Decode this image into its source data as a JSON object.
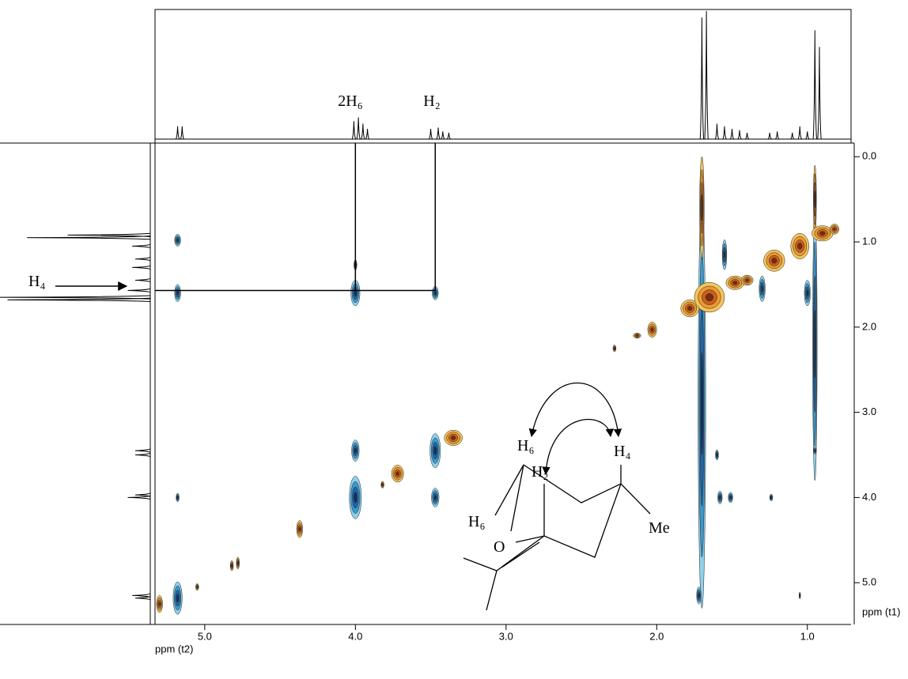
{
  "chart_data": {
    "type": "nmr2d",
    "x_label": "ppm (t2)",
    "y_label": "ppm (t1)",
    "xlim": [
      5.33,
      0.71
    ],
    "ylim": [
      -0.16,
      5.49
    ],
    "xticks": [
      {
        "value": 5,
        "label": "5.0"
      },
      {
        "value": 4,
        "label": "4.0"
      },
      {
        "value": 3,
        "label": "3.0"
      },
      {
        "value": 2,
        "label": "2.0"
      },
      {
        "value": 1,
        "label": "1.0"
      }
    ],
    "yticks": [
      {
        "value": 0,
        "label": "0.0"
      },
      {
        "value": 1,
        "label": "1.0"
      },
      {
        "value": 2,
        "label": "2.0"
      },
      {
        "value": 3,
        "label": "3.0"
      },
      {
        "value": 4,
        "label": "4.0"
      },
      {
        "value": 5,
        "label": "5.0"
      }
    ],
    "positive_colors": [
      "#f5c45a",
      "#ec9a32",
      "#c8601e",
      "#7a2a10"
    ],
    "negative_colors": [
      "#8fd0ea",
      "#3a9ad0",
      "#2364a8",
      "#12305e"
    ],
    "annotations": [
      "2H₆",
      "H₂",
      "H₄"
    ],
    "guides": [
      {
        "x": 4.0,
        "y": 1.57
      },
      {
        "x": 3.47,
        "y": 1.57
      }
    ],
    "top_trace": [
      {
        "x": 5.18,
        "height": 10
      },
      {
        "x": 5.15,
        "height": 10
      },
      {
        "x": 4.01,
        "height": 14
      },
      {
        "x": 3.98,
        "height": 17
      },
      {
        "x": 3.95,
        "height": 12
      },
      {
        "x": 3.92,
        "height": 8
      },
      {
        "x": 3.5,
        "height": 8
      },
      {
        "x": 3.45,
        "height": 9
      },
      {
        "x": 3.42,
        "height": 6
      },
      {
        "x": 3.38,
        "height": 5
      },
      {
        "x": 1.7,
        "height": 95
      },
      {
        "x": 1.67,
        "height": 100
      },
      {
        "x": 1.6,
        "height": 12
      },
      {
        "x": 1.55,
        "height": 10
      },
      {
        "x": 1.5,
        "height": 8
      },
      {
        "x": 1.45,
        "height": 7
      },
      {
        "x": 1.4,
        "height": 5
      },
      {
        "x": 1.25,
        "height": 5
      },
      {
        "x": 1.2,
        "height": 6
      },
      {
        "x": 1.1,
        "height": 5
      },
      {
        "x": 1.05,
        "height": 10
      },
      {
        "x": 1.0,
        "height": 6
      },
      {
        "x": 0.95,
        "height": 85
      },
      {
        "x": 0.92,
        "height": 72
      }
    ],
    "left_trace": [
      {
        "y": 0.95,
        "height": 82
      },
      {
        "y": 0.92,
        "height": 55
      },
      {
        "y": 1.05,
        "height": 12
      },
      {
        "y": 1.2,
        "height": 10
      },
      {
        "y": 1.3,
        "height": 12
      },
      {
        "y": 1.45,
        "height": 10
      },
      {
        "y": 1.57,
        "height": 15
      },
      {
        "y": 1.65,
        "height": 100
      },
      {
        "y": 1.68,
        "height": 95
      },
      {
        "y": 3.45,
        "height": 10
      },
      {
        "y": 3.5,
        "height": 10
      },
      {
        "y": 3.97,
        "height": 10
      },
      {
        "y": 4.0,
        "height": 15
      },
      {
        "y": 5.15,
        "height": 12
      },
      {
        "y": 5.18,
        "height": 10
      }
    ],
    "peaks": [
      {
        "x": 1.7,
        "y": 2.9,
        "w": 0.05,
        "h": 4.8,
        "sign": -1
      },
      {
        "x": 0.95,
        "y": 2.2,
        "w": 0.03,
        "h": 3.2,
        "sign": -1
      },
      {
        "x": 5.18,
        "y": 0.98,
        "w": 0.04,
        "h": 0.14,
        "sign": -1
      },
      {
        "x": 5.18,
        "y": 1.6,
        "w": 0.04,
        "h": 0.2,
        "sign": -1
      },
      {
        "x": 5.18,
        "y": 4.0,
        "w": 0.02,
        "h": 0.1,
        "sign": -1
      },
      {
        "x": 5.18,
        "y": 5.18,
        "w": 0.06,
        "h": 0.38,
        "sign": -1
      },
      {
        "x": 4.0,
        "y": 1.27,
        "w": 0.02,
        "h": 0.12,
        "sign": -1
      },
      {
        "x": 4.0,
        "y": 1.6,
        "w": 0.06,
        "h": 0.3,
        "sign": -1
      },
      {
        "x": 4.0,
        "y": 3.45,
        "w": 0.05,
        "h": 0.25,
        "sign": -1
      },
      {
        "x": 4.0,
        "y": 4.0,
        "w": 0.08,
        "h": 0.5,
        "sign": -1
      },
      {
        "x": 3.47,
        "y": 1.6,
        "w": 0.04,
        "h": 0.16,
        "sign": -1
      },
      {
        "x": 3.47,
        "y": 3.45,
        "w": 0.07,
        "h": 0.4,
        "sign": -1
      },
      {
        "x": 3.47,
        "y": 4.0,
        "w": 0.05,
        "h": 0.22,
        "sign": -1
      },
      {
        "x": 1.72,
        "y": 5.15,
        "w": 0.03,
        "h": 0.2,
        "sign": -1
      },
      {
        "x": 1.6,
        "y": 3.5,
        "w": 0.02,
        "h": 0.12,
        "sign": -1
      },
      {
        "x": 1.58,
        "y": 4.0,
        "w": 0.03,
        "h": 0.15,
        "sign": -1
      },
      {
        "x": 1.55,
        "y": 1.15,
        "w": 0.03,
        "h": 0.35,
        "sign": -1
      },
      {
        "x": 1.51,
        "y": 4.0,
        "w": 0.03,
        "h": 0.12,
        "sign": -1
      },
      {
        "x": 1.24,
        "y": 4.0,
        "w": 0.02,
        "h": 0.08,
        "sign": -1
      },
      {
        "x": 1.3,
        "y": 1.55,
        "w": 0.04,
        "h": 0.3,
        "sign": -1
      },
      {
        "x": 1.0,
        "y": 1.6,
        "w": 0.04,
        "h": 0.3,
        "sign": -1
      },
      {
        "x": 0.95,
        "y": 3.45,
        "w": 0.02,
        "h": 0.08,
        "sign": -1
      },
      {
        "x": 1.05,
        "y": 5.15,
        "w": 0.01,
        "h": 0.08,
        "sign": -1
      },
      {
        "x": 1.7,
        "y": 0.6,
        "w": 0.03,
        "h": 1.2,
        "sign": 1
      },
      {
        "x": 0.95,
        "y": 0.5,
        "w": 0.02,
        "h": 0.8,
        "sign": 1
      },
      {
        "x": 5.3,
        "y": 5.25,
        "w": 0.04,
        "h": 0.2,
        "sign": 1
      },
      {
        "x": 5.05,
        "y": 5.05,
        "w": 0.02,
        "h": 0.08,
        "sign": 1
      },
      {
        "x": 4.82,
        "y": 4.8,
        "w": 0.02,
        "h": 0.12,
        "sign": 1
      },
      {
        "x": 4.78,
        "y": 4.77,
        "w": 0.02,
        "h": 0.14,
        "sign": 1
      },
      {
        "x": 4.37,
        "y": 4.37,
        "w": 0.04,
        "h": 0.2,
        "sign": 1
      },
      {
        "x": 3.82,
        "y": 3.85,
        "w": 0.02,
        "h": 0.08,
        "sign": 1
      },
      {
        "x": 3.72,
        "y": 3.72,
        "w": 0.08,
        "h": 0.2,
        "sign": 1
      },
      {
        "x": 3.35,
        "y": 3.3,
        "w": 0.12,
        "h": 0.18,
        "sign": 1
      },
      {
        "x": 2.28,
        "y": 2.25,
        "w": 0.02,
        "h": 0.08,
        "sign": 1
      },
      {
        "x": 2.13,
        "y": 2.1,
        "w": 0.05,
        "h": 0.06,
        "sign": 1
      },
      {
        "x": 2.03,
        "y": 2.03,
        "w": 0.06,
        "h": 0.18,
        "sign": 1
      },
      {
        "x": 1.78,
        "y": 1.78,
        "w": 0.12,
        "h": 0.2,
        "sign": 1
      },
      {
        "x": 1.65,
        "y": 1.65,
        "w": 0.2,
        "h": 0.35,
        "sign": 1
      },
      {
        "x": 1.48,
        "y": 1.48,
        "w": 0.12,
        "h": 0.16,
        "sign": 1
      },
      {
        "x": 1.4,
        "y": 1.45,
        "w": 0.08,
        "h": 0.12,
        "sign": 1
      },
      {
        "x": 1.22,
        "y": 1.22,
        "w": 0.14,
        "h": 0.25,
        "sign": 1
      },
      {
        "x": 1.05,
        "y": 1.05,
        "w": 0.12,
        "h": 0.3,
        "sign": 1
      },
      {
        "x": 0.9,
        "y": 0.9,
        "w": 0.14,
        "h": 0.18,
        "sign": 1
      },
      {
        "x": 0.82,
        "y": 0.85,
        "w": 0.06,
        "h": 0.12,
        "sign": 1
      }
    ]
  },
  "molecule": {
    "labels": [
      "H₆",
      "H₂",
      "H₄",
      "H₆",
      "O",
      "Me"
    ]
  }
}
